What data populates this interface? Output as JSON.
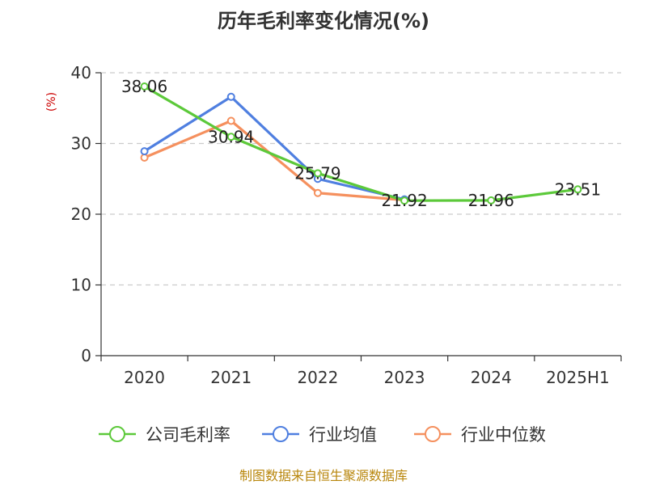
{
  "chart_data": {
    "type": "line",
    "title": "历年毛利率变化情况(%)",
    "ylabel": "(%)",
    "xlabel": "",
    "categories": [
      "2020",
      "2021",
      "2022",
      "2023",
      "2024",
      "2025H1"
    ],
    "ylim": [
      0,
      40
    ],
    "yticks": [
      "0",
      "10",
      "20",
      "30",
      "40"
    ],
    "grid": true,
    "legend_position": "bottom",
    "series": [
      {
        "name": "公司毛利率",
        "color": "#5cc93a",
        "values": [
          38.06,
          30.94,
          25.79,
          21.92,
          21.96,
          23.51
        ],
        "labels": [
          "38.06",
          "30.94",
          "25.79",
          "21.92",
          "21.96",
          "23.51"
        ]
      },
      {
        "name": "行业均值",
        "color": "#4f7fe0",
        "values": [
          28.9,
          36.6,
          25.0,
          22.1,
          null,
          null
        ]
      },
      {
        "name": "行业中位数",
        "color": "#f5905e",
        "values": [
          28.0,
          33.2,
          23.0,
          22.0,
          null,
          null
        ]
      }
    ]
  },
  "footer": {
    "source": "制图数据来自恒生聚源数据库"
  }
}
